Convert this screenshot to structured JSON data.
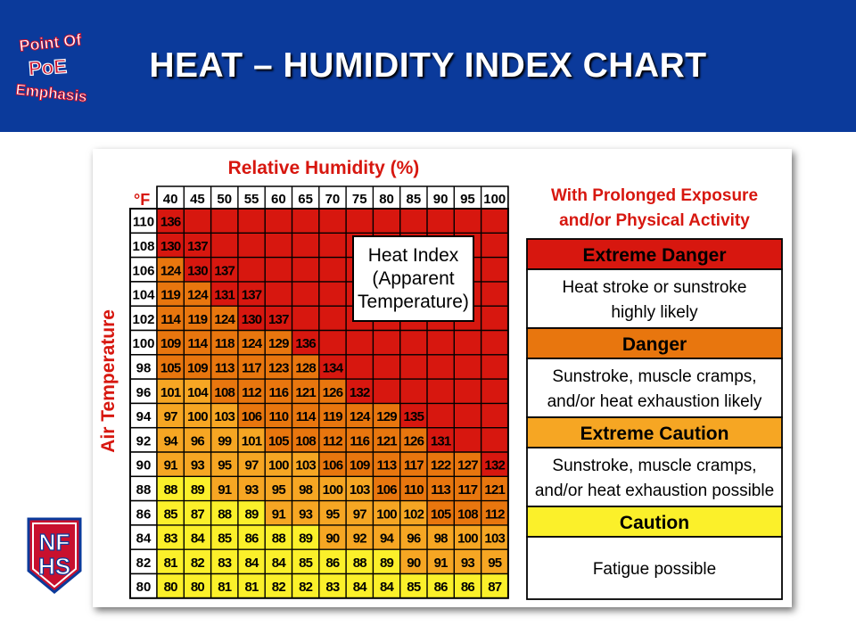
{
  "header": {
    "title": "HEAT – HUMIDITY INDEX CHART",
    "logo_text": [
      "Point Of",
      "PoE",
      "Emphasis"
    ],
    "nfhs_text": [
      "NF",
      "HS"
    ]
  },
  "colors": {
    "header_bg": "#0b3a9b",
    "extreme_danger": "#d7170f",
    "danger": "#e8760e",
    "extreme_caution": "#f6a623",
    "caution": "#fbf02a",
    "title_red": "#d7170f"
  },
  "chart_data": {
    "type": "table",
    "title": "Relative Humidity (%)",
    "xlabel": "Relative Humidity (%)",
    "ylabel": "Air Temperature",
    "unit_label": "°F",
    "humidity": [
      40,
      45,
      50,
      55,
      60,
      65,
      70,
      75,
      80,
      85,
      90,
      95,
      100
    ],
    "temperature": [
      110,
      108,
      106,
      104,
      102,
      100,
      98,
      96,
      94,
      92,
      90,
      88,
      86,
      84,
      82,
      80
    ],
    "values": [
      [
        136,
        null,
        null,
        null,
        null,
        null,
        null,
        null,
        null,
        null,
        null,
        null,
        null
      ],
      [
        130,
        137,
        null,
        null,
        null,
        null,
        null,
        null,
        null,
        null,
        null,
        null,
        null
      ],
      [
        124,
        130,
        137,
        null,
        null,
        null,
        null,
        null,
        null,
        null,
        null,
        null,
        null
      ],
      [
        119,
        124,
        131,
        137,
        null,
        null,
        null,
        null,
        null,
        null,
        null,
        null,
        null
      ],
      [
        114,
        119,
        124,
        130,
        137,
        null,
        null,
        null,
        null,
        null,
        null,
        null,
        null
      ],
      [
        109,
        114,
        118,
        124,
        129,
        136,
        null,
        null,
        null,
        null,
        null,
        null,
        null
      ],
      [
        105,
        109,
        113,
        117,
        123,
        128,
        134,
        null,
        null,
        null,
        null,
        null,
        null
      ],
      [
        101,
        104,
        108,
        112,
        116,
        121,
        126,
        132,
        null,
        null,
        null,
        null,
        null
      ],
      [
        97,
        100,
        103,
        106,
        110,
        114,
        119,
        124,
        129,
        135,
        null,
        null,
        null
      ],
      [
        94,
        96,
        99,
        101,
        105,
        108,
        112,
        116,
        121,
        126,
        131,
        null,
        null
      ],
      [
        91,
        93,
        95,
        97,
        100,
        103,
        106,
        109,
        113,
        117,
        122,
        127,
        132
      ],
      [
        88,
        89,
        91,
        93,
        95,
        98,
        100,
        103,
        106,
        110,
        113,
        117,
        121
      ],
      [
        85,
        87,
        88,
        89,
        91,
        93,
        95,
        97,
        100,
        102,
        105,
        108,
        112
      ],
      [
        83,
        84,
        85,
        86,
        88,
        89,
        90,
        92,
        94,
        96,
        98,
        100,
        103
      ],
      [
        81,
        82,
        83,
        84,
        84,
        85,
        86,
        88,
        89,
        90,
        91,
        93,
        95
      ],
      [
        80,
        80,
        81,
        81,
        82,
        82,
        83,
        84,
        84,
        85,
        86,
        86,
        87
      ]
    ],
    "heat_index_label": [
      "Heat Index",
      "(Apparent",
      "Temperature)"
    ]
  },
  "legend": {
    "heading": [
      "With Prolonged Exposure",
      "and/or Physical Activity"
    ],
    "levels": [
      {
        "name": "Extreme Danger",
        "description": [
          "Heat stroke or sunstroke",
          "highly likely"
        ]
      },
      {
        "name": "Danger",
        "description": [
          "Sunstroke, muscle cramps,",
          "and/or heat exhaustion likely"
        ]
      },
      {
        "name": "Extreme Caution",
        "description": [
          "Sunstroke, muscle cramps,",
          "and/or heat exhaustion possible"
        ]
      },
      {
        "name": "Caution",
        "description": [
          "Fatigue possible"
        ]
      }
    ]
  }
}
